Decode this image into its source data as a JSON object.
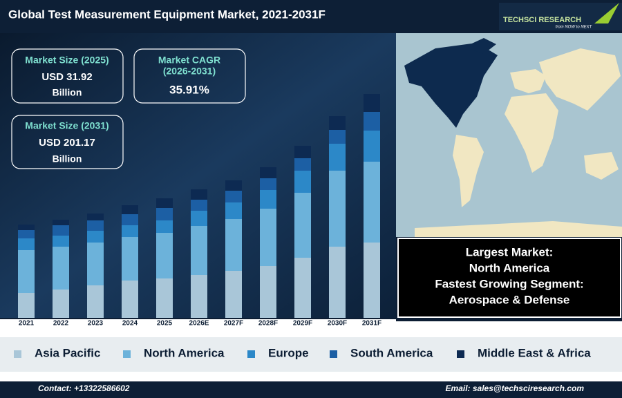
{
  "header": {
    "title": "Global Test Measurement Equipment Market, 2021-2031F"
  },
  "logo": {
    "name": "TECHSCI RESEARCH",
    "tagline": "from NOW to NEXT"
  },
  "cards": [
    {
      "label": "Market Size (2025)",
      "value": "USD 31.92",
      "unit": "Billion"
    },
    {
      "label_lines": [
        "Market CAGR",
        "(2026-2031)"
      ],
      "value": "35.91%"
    },
    {
      "label": "Market Size (2031)",
      "value": "USD 201.17",
      "unit": "Billion"
    }
  ],
  "highlights": [
    "Largest Market:",
    "North America",
    "Fastest Growing Segment:",
    "Aerospace & Defense"
  ],
  "footer": {
    "contact": "Contact: +13322586602",
    "email": "Email: sales@techsciresearch.com"
  },
  "chart_data": {
    "type": "stacked_bar",
    "categories": [
      "2021",
      "2022",
      "2023",
      "2024",
      "2025",
      "2026E",
      "2027F",
      "2028F",
      "2029F",
      "2030F",
      "2031F"
    ],
    "series": [
      {
        "name": "Asia Pacific",
        "color": "#a9c6d8",
        "values": [
          36,
          41,
          47,
          54,
          57,
          62,
          68,
          75,
          87,
          103,
          109
        ]
      },
      {
        "name": "North America",
        "color": "#6cb2da",
        "values": [
          62,
          62,
          62,
          63,
          66,
          71,
          75,
          83,
          94,
          110,
          117
        ]
      },
      {
        "name": "Europe",
        "color": "#2c88c8",
        "values": [
          17,
          16,
          17,
          17,
          18,
          22,
          24,
          27,
          32,
          39,
          45
        ]
      },
      {
        "name": "South America",
        "color": "#1c5fa4",
        "values": [
          12,
          15,
          15,
          16,
          18,
          16,
          17,
          17,
          18,
          20,
          27
        ]
      },
      {
        "name": "Middle East & Africa",
        "color": "#0d2a52",
        "values": [
          8,
          8,
          10,
          13,
          14,
          15,
          15,
          16,
          18,
          20,
          26
        ]
      }
    ]
  }
}
